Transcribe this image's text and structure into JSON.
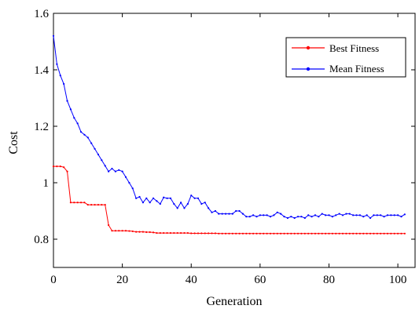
{
  "chart_data": {
    "type": "line",
    "title": "",
    "xlabel": "Generation",
    "ylabel": "Cost",
    "xlim": [
      0,
      105
    ],
    "ylim": [
      0.7,
      1.6
    ],
    "xticks": [
      0,
      20,
      40,
      60,
      80,
      100
    ],
    "yticks": [
      0.8,
      1,
      1.2,
      1.4,
      1.6
    ],
    "xtick_labels": [
      "0",
      "20",
      "40",
      "60",
      "80",
      "100"
    ],
    "ytick_labels": [
      "0.8",
      "1",
      "1.2",
      "1.4",
      "1.6"
    ],
    "grid": false,
    "legend_position": "top-right",
    "x": [
      0,
      1,
      2,
      3,
      4,
      5,
      6,
      7,
      8,
      9,
      10,
      11,
      12,
      13,
      14,
      15,
      16,
      17,
      18,
      19,
      20,
      21,
      22,
      23,
      24,
      25,
      26,
      27,
      28,
      29,
      30,
      31,
      32,
      33,
      34,
      35,
      36,
      37,
      38,
      39,
      40,
      41,
      42,
      43,
      44,
      45,
      46,
      47,
      48,
      49,
      50,
      51,
      52,
      53,
      54,
      55,
      56,
      57,
      58,
      59,
      60,
      61,
      62,
      63,
      64,
      65,
      66,
      67,
      68,
      69,
      70,
      71,
      72,
      73,
      74,
      75,
      76,
      77,
      78,
      79,
      80,
      81,
      82,
      83,
      84,
      85,
      86,
      87,
      88,
      89,
      90,
      91,
      92,
      93,
      94,
      95,
      96,
      97,
      98,
      99,
      100,
      101,
      102
    ],
    "series": [
      {
        "name": "Best Fitness",
        "color": "#ff0000",
        "marker": "dot",
        "values": [
          1.058,
          1.058,
          1.058,
          1.055,
          1.04,
          0.93,
          0.93,
          0.93,
          0.93,
          0.93,
          0.922,
          0.922,
          0.922,
          0.922,
          0.922,
          0.922,
          0.85,
          0.83,
          0.83,
          0.83,
          0.83,
          0.83,
          0.829,
          0.828,
          0.826,
          0.826,
          0.826,
          0.825,
          0.825,
          0.824,
          0.822,
          0.822,
          0.822,
          0.822,
          0.822,
          0.822,
          0.822,
          0.822,
          0.822,
          0.822,
          0.821,
          0.821,
          0.821,
          0.821,
          0.821,
          0.821,
          0.821,
          0.821,
          0.82,
          0.82,
          0.82,
          0.82,
          0.82,
          0.82,
          0.82,
          0.82,
          0.82,
          0.82,
          0.82,
          0.82,
          0.82,
          0.82,
          0.82,
          0.82,
          0.82,
          0.82,
          0.82,
          0.82,
          0.82,
          0.82,
          0.82,
          0.82,
          0.82,
          0.82,
          0.82,
          0.82,
          0.82,
          0.82,
          0.82,
          0.82,
          0.82,
          0.82,
          0.82,
          0.82,
          0.82,
          0.82,
          0.82,
          0.82,
          0.82,
          0.82,
          0.82,
          0.82,
          0.82,
          0.82,
          0.82,
          0.82,
          0.82,
          0.82,
          0.82,
          0.82,
          0.82,
          0.82,
          0.82
        ]
      },
      {
        "name": "Mean Fitness",
        "color": "#0000ff",
        "marker": "dot",
        "values": [
          1.52,
          1.42,
          1.38,
          1.35,
          1.29,
          1.26,
          1.23,
          1.21,
          1.18,
          1.17,
          1.16,
          1.14,
          1.12,
          1.1,
          1.08,
          1.06,
          1.04,
          1.05,
          1.04,
          1.045,
          1.04,
          1.02,
          1.0,
          0.98,
          0.945,
          0.95,
          0.93,
          0.945,
          0.93,
          0.945,
          0.935,
          0.925,
          0.948,
          0.945,
          0.945,
          0.925,
          0.91,
          0.93,
          0.91,
          0.925,
          0.955,
          0.945,
          0.945,
          0.925,
          0.93,
          0.91,
          0.895,
          0.9,
          0.89,
          0.89,
          0.89,
          0.89,
          0.89,
          0.9,
          0.9,
          0.89,
          0.88,
          0.88,
          0.885,
          0.88,
          0.885,
          0.885,
          0.885,
          0.88,
          0.885,
          0.895,
          0.89,
          0.88,
          0.875,
          0.88,
          0.875,
          0.88,
          0.88,
          0.875,
          0.885,
          0.88,
          0.885,
          0.88,
          0.89,
          0.885,
          0.885,
          0.88,
          0.885,
          0.89,
          0.885,
          0.89,
          0.89,
          0.885,
          0.885,
          0.885,
          0.88,
          0.885,
          0.875,
          0.885,
          0.885,
          0.885,
          0.88,
          0.885,
          0.885,
          0.885,
          0.885,
          0.88,
          0.888
        ]
      }
    ]
  }
}
